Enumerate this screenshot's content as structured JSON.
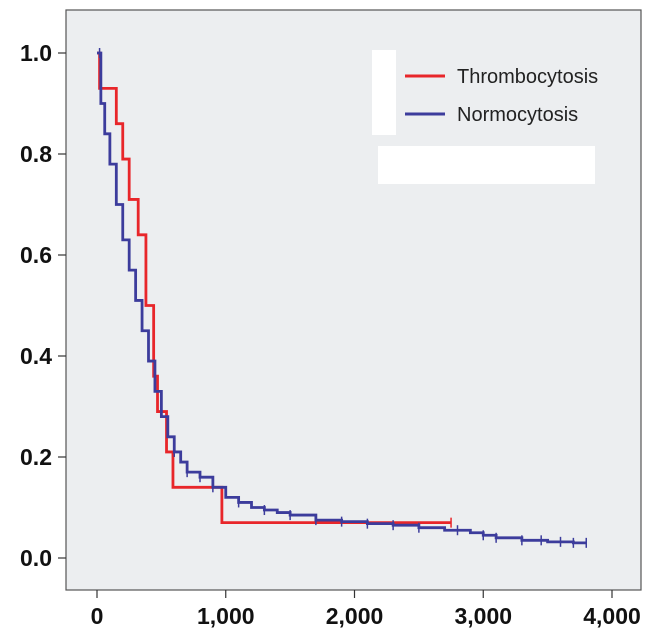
{
  "chart_data": {
    "type": "line",
    "subtype": "kaplan-meier-step",
    "title": "",
    "xlabel": "",
    "ylabel": "",
    "xlim": [
      0,
      4000
    ],
    "ylim": [
      0.0,
      1.0
    ],
    "x_ticks": [
      0,
      1000,
      2000,
      3000,
      4000
    ],
    "x_tick_labels": [
      "0",
      "1,000",
      "2,000",
      "3,000",
      "4,000"
    ],
    "y_ticks": [
      0.0,
      0.2,
      0.4,
      0.6,
      0.8,
      1.0
    ],
    "y_tick_labels": [
      "0.0",
      "0.2",
      "0.4",
      "0.6",
      "0.8",
      "1.0"
    ],
    "grid": false,
    "legend_position": "top-right",
    "background_color": "#eceef0",
    "series": [
      {
        "name": "Thrombocytosis",
        "color": "#e8262a",
        "points": [
          [
            0,
            1.0
          ],
          [
            20,
            0.93
          ],
          [
            150,
            0.86
          ],
          [
            200,
            0.79
          ],
          [
            250,
            0.71
          ],
          [
            320,
            0.64
          ],
          [
            380,
            0.5
          ],
          [
            440,
            0.36
          ],
          [
            470,
            0.29
          ],
          [
            540,
            0.21
          ],
          [
            590,
            0.14
          ],
          [
            970,
            0.07
          ],
          [
            2750,
            0.07
          ]
        ],
        "censor_x": [
          2750
        ]
      },
      {
        "name": "Normocytosis",
        "color": "#3c3c9c",
        "points": [
          [
            0,
            1.0
          ],
          [
            30,
            0.9
          ],
          [
            60,
            0.84
          ],
          [
            100,
            0.78
          ],
          [
            150,
            0.7
          ],
          [
            200,
            0.63
          ],
          [
            250,
            0.57
          ],
          [
            300,
            0.51
          ],
          [
            350,
            0.45
          ],
          [
            400,
            0.39
          ],
          [
            450,
            0.33
          ],
          [
            500,
            0.28
          ],
          [
            550,
            0.24
          ],
          [
            600,
            0.21
          ],
          [
            650,
            0.19
          ],
          [
            700,
            0.17
          ],
          [
            800,
            0.16
          ],
          [
            900,
            0.14
          ],
          [
            1000,
            0.12
          ],
          [
            1100,
            0.11
          ],
          [
            1200,
            0.1
          ],
          [
            1300,
            0.095
          ],
          [
            1400,
            0.09
          ],
          [
            1500,
            0.085
          ],
          [
            1700,
            0.075
          ],
          [
            1900,
            0.072
          ],
          [
            2100,
            0.068
          ],
          [
            2300,
            0.065
          ],
          [
            2500,
            0.06
          ],
          [
            2700,
            0.055
          ],
          [
            2900,
            0.05
          ],
          [
            3000,
            0.045
          ],
          [
            3100,
            0.04
          ],
          [
            3300,
            0.035
          ],
          [
            3500,
            0.032
          ],
          [
            3700,
            0.03
          ],
          [
            3800,
            0.03
          ]
        ],
        "censor_x": [
          20,
          600,
          700,
          800,
          900,
          1100,
          1300,
          1500,
          1700,
          1900,
          2100,
          2300,
          2500,
          2800,
          3000,
          3100,
          3300,
          3450,
          3600,
          3700,
          3800
        ]
      }
    ]
  }
}
